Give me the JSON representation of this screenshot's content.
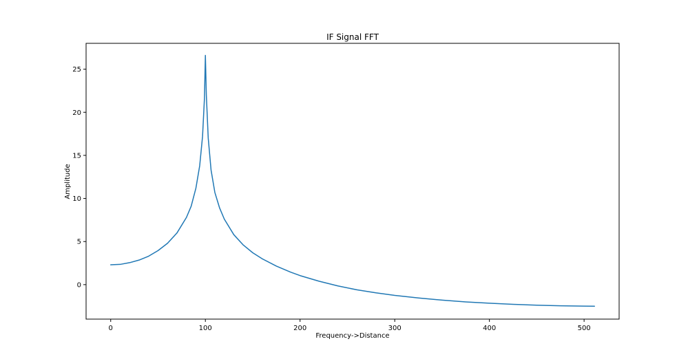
{
  "chart_data": {
    "type": "line",
    "title": "IF Signal FFT",
    "xlabel": "Frequency->Distance",
    "ylabel": "Amplitude",
    "xlim": [
      -26,
      537
    ],
    "ylim": [
      -4,
      28
    ],
    "x_ticks": [
      0,
      100,
      200,
      300,
      400,
      500
    ],
    "y_ticks": [
      0,
      5,
      10,
      15,
      20,
      25
    ],
    "x_tick_labels": [
      "0",
      "100",
      "200",
      "300",
      "400",
      "500"
    ],
    "y_tick_labels": [
      "0",
      "5",
      "10",
      "15",
      "20",
      "25"
    ],
    "grid": false,
    "series": [
      {
        "color": "#1f77b4",
        "points": [
          [
            0,
            2.3
          ],
          [
            10,
            2.35
          ],
          [
            20,
            2.55
          ],
          [
            30,
            2.85
          ],
          [
            40,
            3.3
          ],
          [
            50,
            3.95
          ],
          [
            60,
            4.8
          ],
          [
            70,
            6.0
          ],
          [
            80,
            7.8
          ],
          [
            85,
            9.1
          ],
          [
            90,
            11.2
          ],
          [
            94,
            13.8
          ],
          [
            97,
            17.2
          ],
          [
            99,
            21.6
          ],
          [
            100,
            26.6
          ],
          [
            101,
            22.0
          ],
          [
            103,
            17.0
          ],
          [
            106,
            13.3
          ],
          [
            110,
            10.7
          ],
          [
            115,
            8.9
          ],
          [
            120,
            7.6
          ],
          [
            130,
            5.8
          ],
          [
            140,
            4.6
          ],
          [
            150,
            3.7
          ],
          [
            160,
            3.0
          ],
          [
            175,
            2.15
          ],
          [
            190,
            1.45
          ],
          [
            200,
            1.05
          ],
          [
            220,
            0.4
          ],
          [
            240,
            -0.15
          ],
          [
            260,
            -0.6
          ],
          [
            280,
            -0.95
          ],
          [
            300,
            -1.25
          ],
          [
            325,
            -1.55
          ],
          [
            350,
            -1.8
          ],
          [
            375,
            -2.0
          ],
          [
            400,
            -2.15
          ],
          [
            425,
            -2.28
          ],
          [
            450,
            -2.38
          ],
          [
            475,
            -2.45
          ],
          [
            500,
            -2.49
          ],
          [
            511,
            -2.5
          ]
        ]
      }
    ]
  }
}
